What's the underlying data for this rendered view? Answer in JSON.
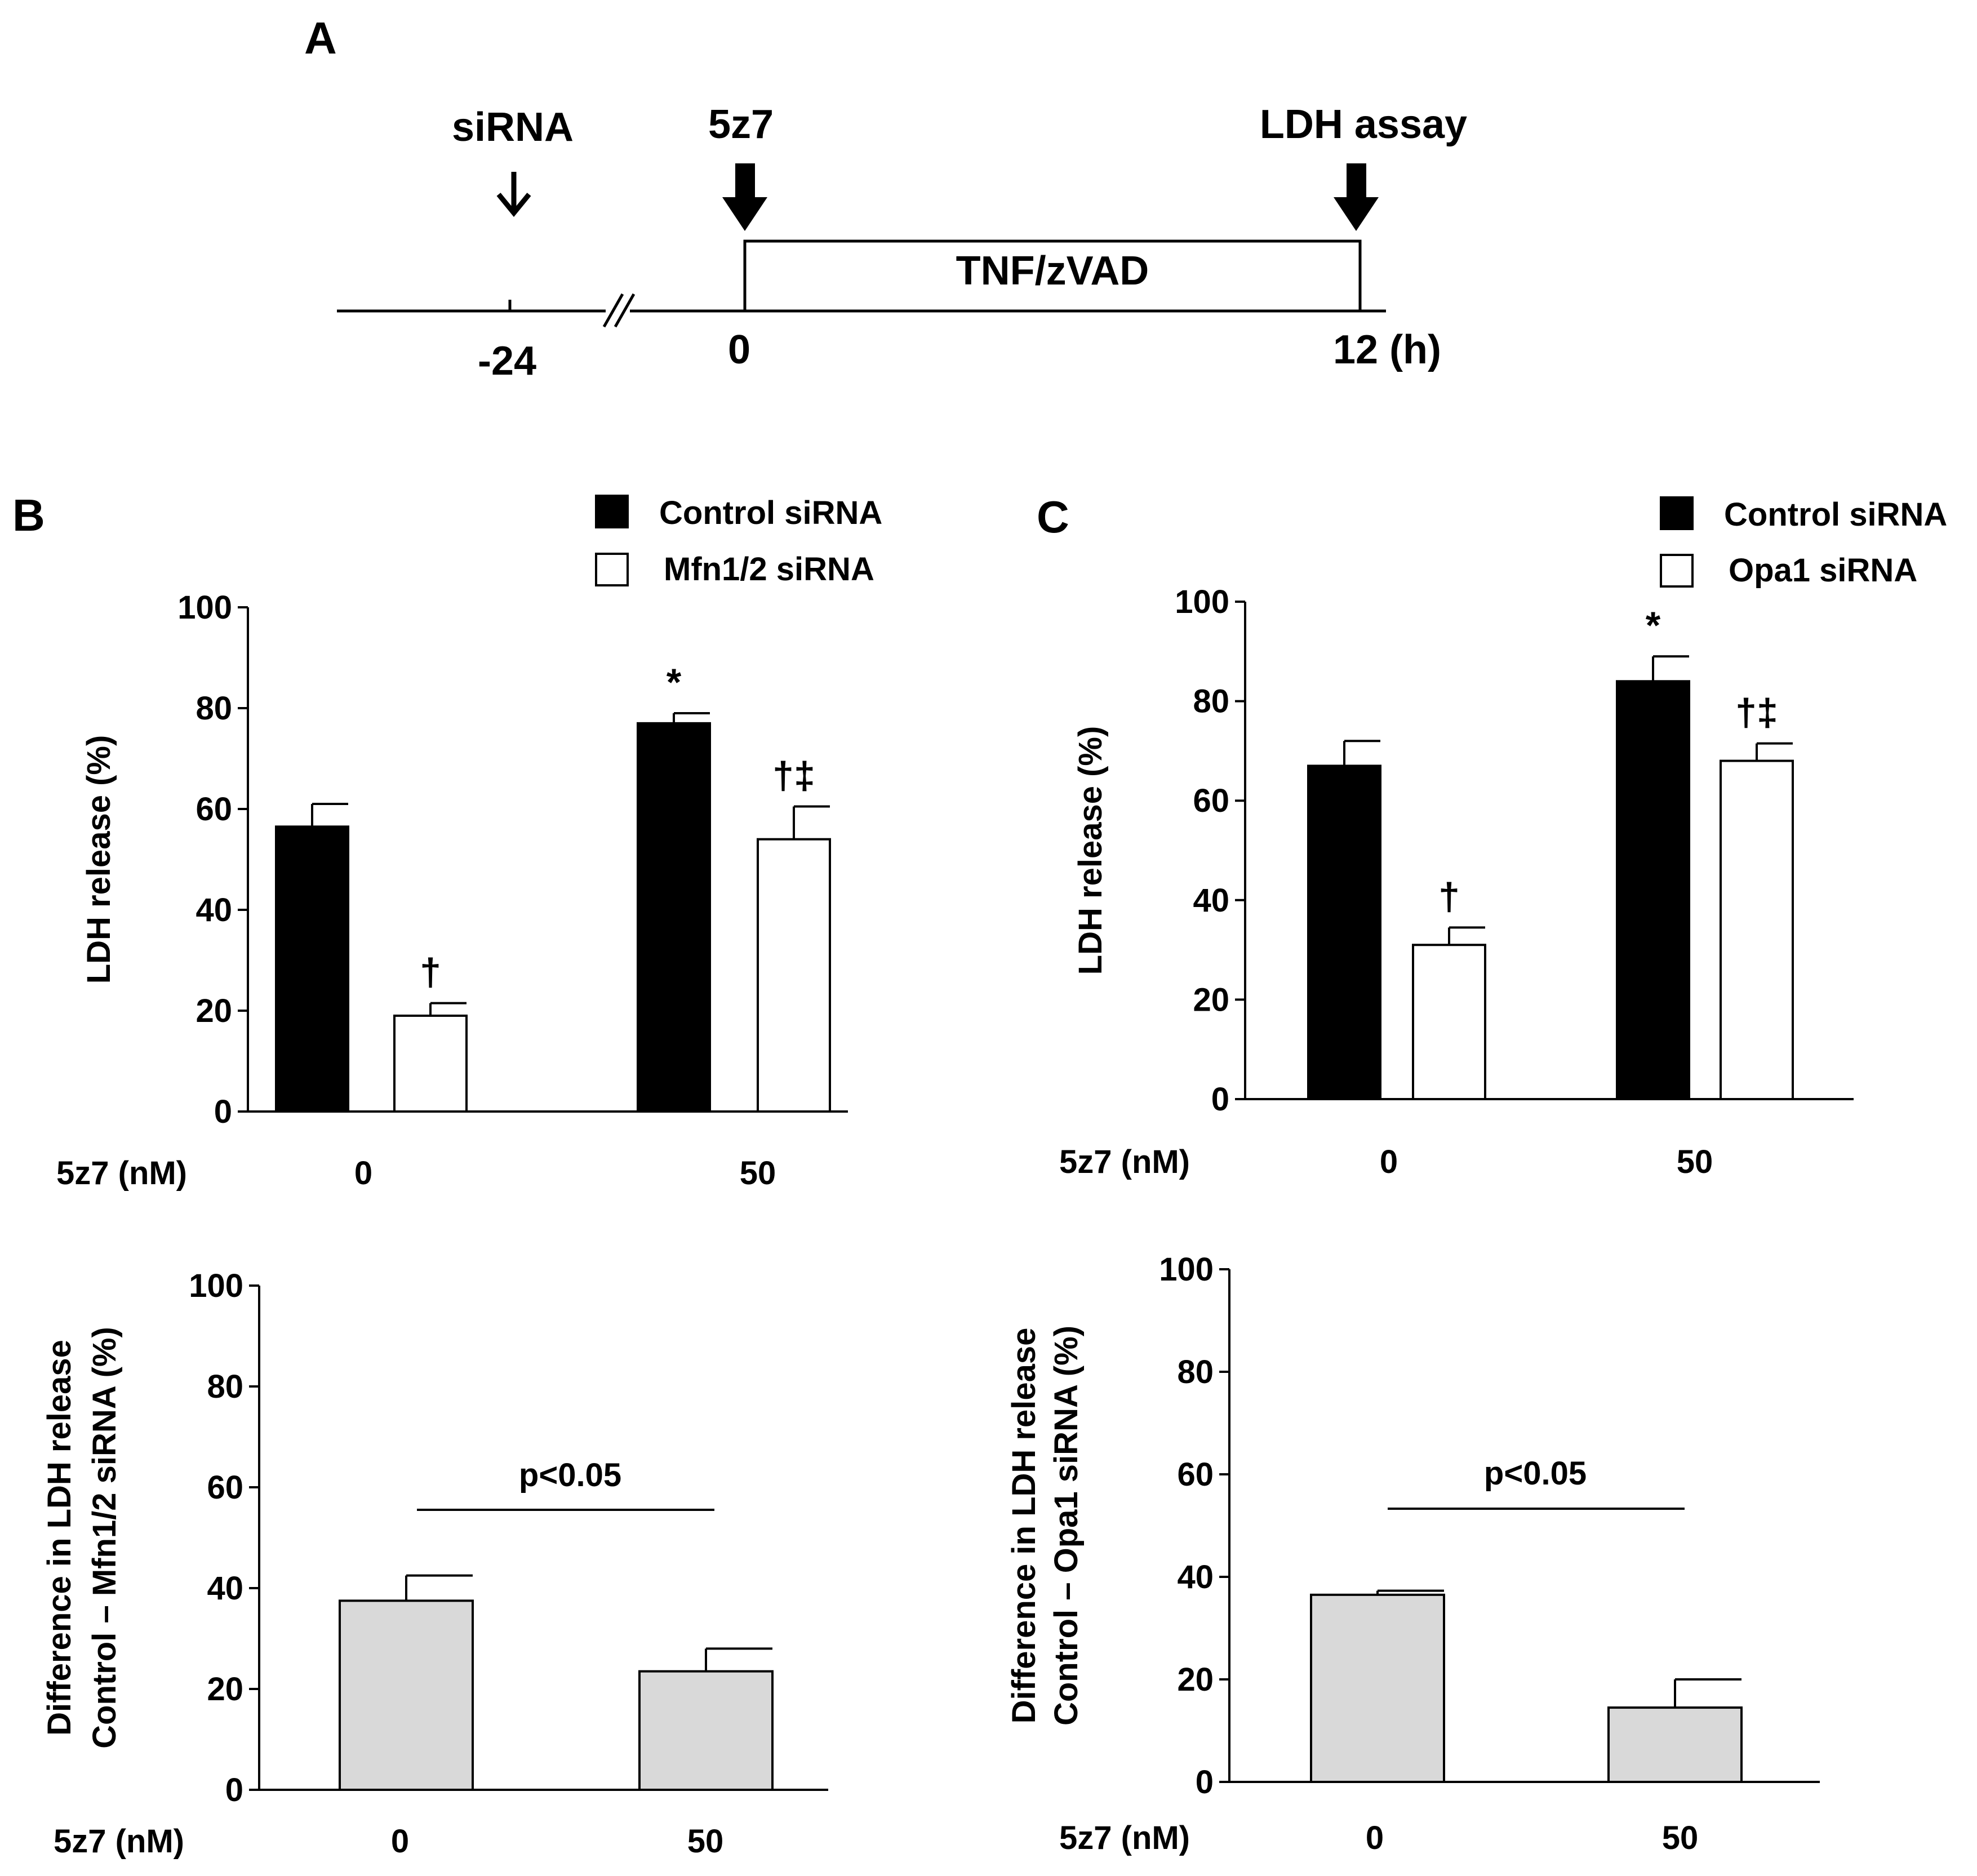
{
  "timeline": {
    "panel_label": "A",
    "events": [
      {
        "label": "siRNA",
        "time": "-24"
      },
      {
        "label": "5z7",
        "time": "0"
      },
      {
        "label": "LDH assay",
        "time": "12 (h)"
      }
    ],
    "treatment_label": "TNF/zVAD"
  },
  "chart_data": [
    {
      "id": "B-top",
      "panel_label": "B",
      "type": "bar",
      "xlabel": "5z7 (nM)",
      "ylabel": "LDH release (%)",
      "categories": [
        "0",
        "50"
      ],
      "ylim": [
        0,
        100
      ],
      "yticks": [
        "0",
        "20",
        "40",
        "60",
        "80",
        "100"
      ],
      "series": [
        {
          "name": "Control siRNA",
          "color": "#000000",
          "values": [
            56.5,
            77
          ],
          "errors": [
            4.5,
            2
          ],
          "markers": [
            "",
            "*"
          ]
        },
        {
          "name": "Mfn1/2 siRNA",
          "color": "#ffffff",
          "values": [
            19,
            54
          ],
          "errors": [
            2.5,
            6.5
          ],
          "markers": [
            "†",
            "†‡"
          ]
        }
      ]
    },
    {
      "id": "C-top",
      "panel_label": "C",
      "type": "bar",
      "xlabel": "5z7 (nM)",
      "ylabel": "LDH release (%)",
      "categories": [
        "0",
        "50"
      ],
      "ylim": [
        0,
        100
      ],
      "yticks": [
        "0",
        "20",
        "40",
        "60",
        "80",
        "100"
      ],
      "series": [
        {
          "name": "Control siRNA",
          "color": "#000000",
          "values": [
            67,
            84
          ],
          "errors": [
            5,
            5
          ],
          "markers": [
            "",
            "*"
          ]
        },
        {
          "name": "Opa1 siRNA",
          "color": "#ffffff",
          "values": [
            31,
            68
          ],
          "errors": [
            3.5,
            3.5
          ],
          "markers": [
            "†",
            "†‡"
          ]
        }
      ]
    },
    {
      "id": "B-bottom",
      "type": "bar",
      "xlabel": "5z7 (nM)",
      "ylabel_lines": [
        "Difference in LDH release",
        "Control – Mfn1/2 siRNA (%)"
      ],
      "categories": [
        "0",
        "50"
      ],
      "ylim": [
        0,
        100
      ],
      "yticks": [
        "0",
        "20",
        "40",
        "60",
        "80",
        "100"
      ],
      "series": [
        {
          "name": "Difference",
          "color": "#d9d9d9",
          "values": [
            37.5,
            23.5
          ],
          "errors": [
            5,
            4.5
          ],
          "markers": [
            "",
            ""
          ]
        }
      ],
      "annotation": "p<0.05"
    },
    {
      "id": "C-bottom",
      "type": "bar",
      "xlabel": "5z7 (nM)",
      "ylabel_lines": [
        "Difference in LDH release",
        "Control – Opa1 siRNA (%)"
      ],
      "categories": [
        "0",
        "50"
      ],
      "ylim": [
        0,
        100
      ],
      "yticks": [
        "0",
        "20",
        "40",
        "60",
        "80",
        "100"
      ],
      "series": [
        {
          "name": "Difference",
          "color": "#d9d9d9",
          "values": [
            36.5,
            14.5
          ],
          "errors": [
            0.8,
            5.5
          ],
          "markers": [
            "",
            ""
          ]
        }
      ],
      "annotation": "p<0.05"
    }
  ]
}
